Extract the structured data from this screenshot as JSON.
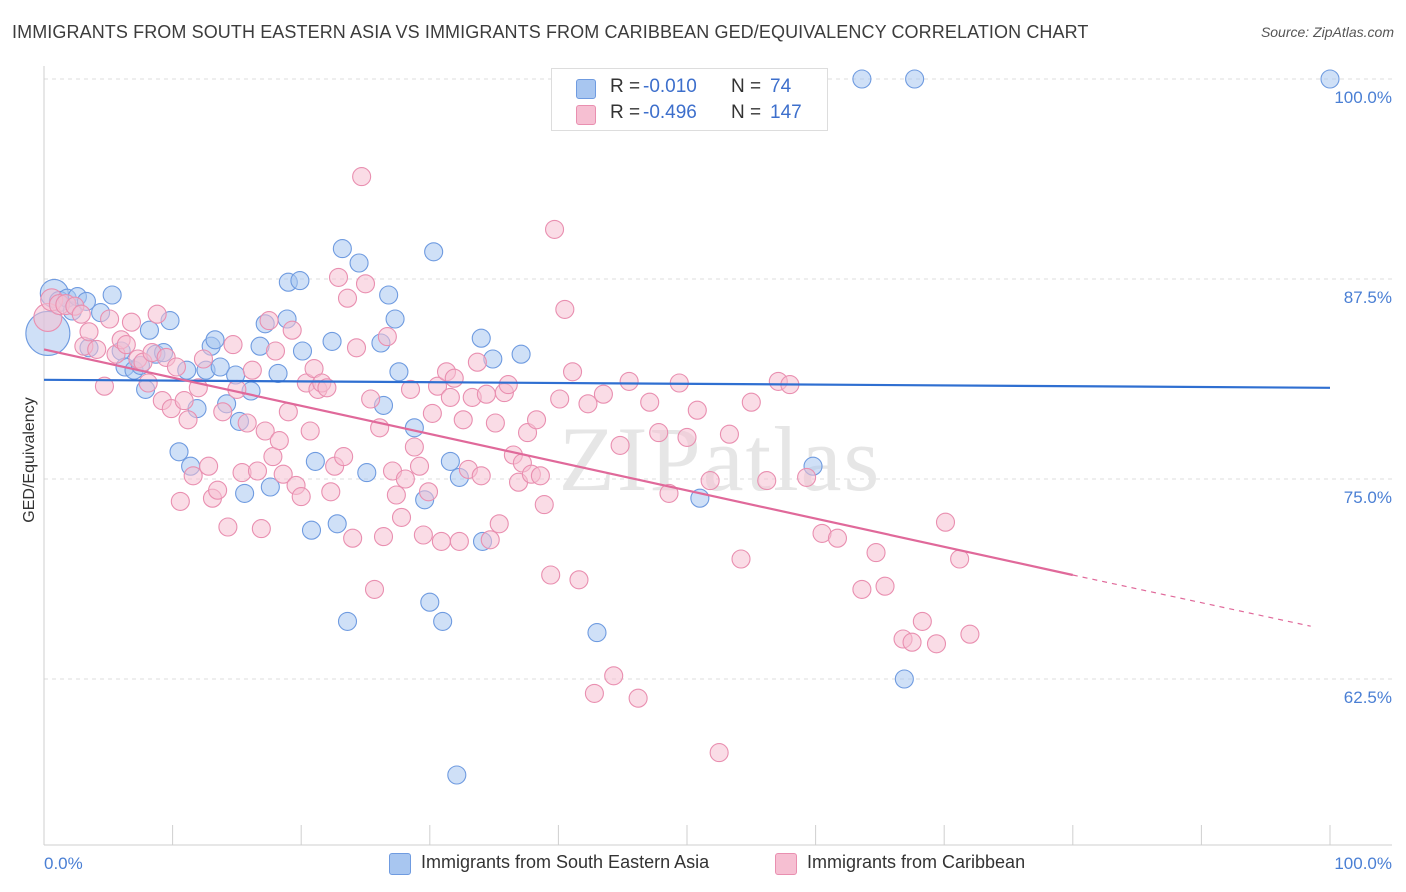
{
  "title": "IMMIGRANTS FROM SOUTH EASTERN ASIA VS IMMIGRANTS FROM CARIBBEAN GED/EQUIVALENCY CORRELATION CHART",
  "source": "Source: ZipAtlas.com",
  "watermark": "ZIPatlas",
  "legend": {
    "rows": [
      {
        "r_label": "R =",
        "r_value": "-0.010",
        "n_label": "N =",
        "n_value": "74",
        "color": "#a8c6f0",
        "border": "#6f9be0"
      },
      {
        "r_label": "R =",
        "r_value": "-0.496",
        "n_label": "N =",
        "n_value": "147",
        "color": "#f6bfd2",
        "border": "#e98fb0"
      }
    ]
  },
  "bottom_legend": [
    {
      "label": "Immigrants from South Eastern Asia",
      "color": "#a8c6f0",
      "border": "#6f9be0"
    },
    {
      "label": "Immigrants from Caribbean",
      "color": "#f6bfd2",
      "border": "#e98fb0"
    }
  ],
  "chart_data": {
    "type": "scatter",
    "title": "IMMIGRANTS FROM SOUTH EASTERN ASIA VS IMMIGRANTS FROM CARIBBEAN GED/EQUIVALENCY CORRELATION CHART",
    "xlabel": "",
    "ylabel": "GED/Equivalency",
    "xlim": [
      0,
      100
    ],
    "ylim": [
      52,
      101.5
    ],
    "x_tick_labels": [
      "0.0%",
      "100.0%"
    ],
    "y_ticks": [
      62.5,
      75.0,
      87.5,
      100.0
    ],
    "y_tick_labels": [
      "62.5%",
      "75.0%",
      "87.5%",
      "100.0%"
    ],
    "grid": "horizontal dashed",
    "legend_position": "top-center",
    "series": [
      {
        "name": "Immigrants from South Eastern Asia",
        "color": "#6f9be0",
        "fill": "#a8c6f0",
        "trend": {
          "x0": 0,
          "y0": 81.2,
          "x1": 100,
          "y1": 80.7
        },
        "points": [
          [
            0.3,
            84.1,
            22
          ],
          [
            0.8,
            86.6,
            14
          ],
          [
            1.2,
            86.1,
            10
          ],
          [
            1.8,
            86.3,
            9
          ],
          [
            2.2,
            85.5,
            9
          ],
          [
            2.6,
            86.4,
            9
          ],
          [
            3.3,
            86.1,
            9
          ],
          [
            4.4,
            85.4,
            9
          ],
          [
            5.3,
            86.5,
            9
          ],
          [
            3.5,
            83.2,
            9
          ],
          [
            6.0,
            83.0,
            9
          ],
          [
            6.3,
            82.0,
            9
          ],
          [
            7.0,
            81.8,
            9
          ],
          [
            7.5,
            82.1,
            9
          ],
          [
            7.9,
            80.6,
            9
          ],
          [
            8.2,
            84.3,
            9
          ],
          [
            8.7,
            82.8,
            9
          ],
          [
            9.3,
            82.9,
            9
          ],
          [
            9.8,
            84.9,
            9
          ],
          [
            10.5,
            76.7,
            9
          ],
          [
            11.1,
            81.8,
            9
          ],
          [
            11.4,
            75.8,
            9
          ],
          [
            11.9,
            79.4,
            9
          ],
          [
            12.6,
            81.8,
            9
          ],
          [
            13.0,
            83.3,
            9
          ],
          [
            13.3,
            83.7,
            9
          ],
          [
            13.7,
            82.0,
            9
          ],
          [
            14.2,
            79.7,
            9
          ],
          [
            14.9,
            81.5,
            9
          ],
          [
            15.2,
            78.6,
            9
          ],
          [
            15.6,
            74.1,
            9
          ],
          [
            16.1,
            80.5,
            9
          ],
          [
            16.8,
            83.3,
            9
          ],
          [
            17.2,
            84.7,
            9
          ],
          [
            17.6,
            74.5,
            9
          ],
          [
            18.2,
            81.6,
            9
          ],
          [
            18.9,
            85.0,
            9
          ],
          [
            19.0,
            87.3,
            9
          ],
          [
            19.9,
            87.4,
            9
          ],
          [
            20.1,
            83.0,
            9
          ],
          [
            20.8,
            71.8,
            9
          ],
          [
            21.1,
            76.1,
            9
          ],
          [
            22.4,
            83.6,
            9
          ],
          [
            22.8,
            72.2,
            9
          ],
          [
            23.2,
            89.4,
            9
          ],
          [
            23.6,
            66.1,
            9
          ],
          [
            24.5,
            88.5,
            9
          ],
          [
            25.1,
            75.4,
            9
          ],
          [
            26.2,
            83.5,
            9
          ],
          [
            26.4,
            79.6,
            9
          ],
          [
            26.8,
            86.5,
            9
          ],
          [
            27.3,
            85.0,
            9
          ],
          [
            27.6,
            81.7,
            9
          ],
          [
            28.8,
            78.2,
            9
          ],
          [
            29.6,
            73.7,
            9
          ],
          [
            30.0,
            67.3,
            9
          ],
          [
            30.3,
            89.2,
            9
          ],
          [
            31.0,
            66.1,
            9
          ],
          [
            31.6,
            76.1,
            9
          ],
          [
            32.1,
            56.5,
            9
          ],
          [
            32.3,
            75.1,
            9
          ],
          [
            34.1,
            71.1,
            9
          ],
          [
            34.0,
            83.8,
            9
          ],
          [
            34.9,
            82.5,
            9
          ],
          [
            37.1,
            82.8,
            9
          ],
          [
            43.0,
            65.4,
            9
          ],
          [
            51.0,
            73.8,
            9
          ],
          [
            59.8,
            75.8,
            9
          ],
          [
            66.9,
            62.5,
            9
          ],
          [
            63.6,
            100.0,
            9
          ],
          [
            67.7,
            100.0,
            9
          ],
          [
            100.0,
            100.0,
            9
          ]
        ]
      },
      {
        "name": "Immigrants from Caribbean",
        "color": "#e98fb0",
        "fill": "#f6bfd2",
        "trend": {
          "x0": 0,
          "y0": 83.1,
          "x1": 80,
          "y1": 69.0,
          "dash_x1": 98.5,
          "dash_y1": 65.8
        },
        "points": [
          [
            0.3,
            85.1,
            14
          ],
          [
            0.6,
            86.2,
            11
          ],
          [
            1.2,
            85.9,
            10
          ],
          [
            1.7,
            85.9,
            10
          ],
          [
            2.4,
            85.8,
            9
          ],
          [
            2.9,
            85.3,
            9
          ],
          [
            3.1,
            83.3,
            9
          ],
          [
            3.5,
            84.2,
            9
          ],
          [
            4.1,
            83.1,
            9
          ],
          [
            4.7,
            80.8,
            9
          ],
          [
            5.1,
            85.0,
            9
          ],
          [
            5.6,
            82.8,
            9
          ],
          [
            6.0,
            83.7,
            9
          ],
          [
            6.4,
            83.4,
            9
          ],
          [
            6.8,
            84.8,
            9
          ],
          [
            7.3,
            82.5,
            9
          ],
          [
            7.7,
            82.3,
            9
          ],
          [
            8.1,
            81.0,
            9
          ],
          [
            8.4,
            82.9,
            9
          ],
          [
            8.8,
            85.3,
            9
          ],
          [
            9.2,
            79.9,
            9
          ],
          [
            9.5,
            82.6,
            9
          ],
          [
            9.9,
            79.4,
            9
          ],
          [
            10.3,
            82.0,
            9
          ],
          [
            10.6,
            73.6,
            9
          ],
          [
            10.9,
            79.9,
            9
          ],
          [
            11.2,
            78.7,
            9
          ],
          [
            11.6,
            75.2,
            9
          ],
          [
            12.0,
            80.7,
            9
          ],
          [
            12.4,
            82.5,
            9
          ],
          [
            12.8,
            75.8,
            9
          ],
          [
            13.1,
            73.8,
            9
          ],
          [
            13.5,
            74.3,
            9
          ],
          [
            13.9,
            79.2,
            9
          ],
          [
            14.3,
            72.0,
            9
          ],
          [
            14.7,
            83.4,
            9
          ],
          [
            15.0,
            80.6,
            9
          ],
          [
            15.4,
            75.4,
            9
          ],
          [
            15.8,
            78.5,
            9
          ],
          [
            16.2,
            81.8,
            9
          ],
          [
            16.6,
            75.5,
            9
          ],
          [
            16.9,
            71.9,
            9
          ],
          [
            17.2,
            78.0,
            9
          ],
          [
            17.5,
            84.9,
            9
          ],
          [
            17.8,
            76.4,
            9
          ],
          [
            18.0,
            83.0,
            9
          ],
          [
            18.3,
            77.4,
            9
          ],
          [
            18.6,
            75.3,
            9
          ],
          [
            19.0,
            79.2,
            9
          ],
          [
            19.3,
            84.3,
            9
          ],
          [
            19.6,
            74.6,
            9
          ],
          [
            20.0,
            73.9,
            9
          ],
          [
            20.4,
            81.0,
            9
          ],
          [
            20.7,
            78.0,
            9
          ],
          [
            21.0,
            81.9,
            9
          ],
          [
            21.3,
            80.6,
            9
          ],
          [
            21.6,
            81.0,
            9
          ],
          [
            22.0,
            80.7,
            9
          ],
          [
            22.3,
            74.2,
            9
          ],
          [
            22.6,
            75.8,
            9
          ],
          [
            22.9,
            87.6,
            9
          ],
          [
            23.3,
            76.4,
            9
          ],
          [
            23.6,
            86.3,
            9
          ],
          [
            24.0,
            71.3,
            9
          ],
          [
            24.3,
            83.2,
            9
          ],
          [
            24.7,
            93.9,
            9
          ],
          [
            25.0,
            87.2,
            9
          ],
          [
            25.4,
            80.0,
            9
          ],
          [
            25.7,
            68.1,
            9
          ],
          [
            26.1,
            78.2,
            9
          ],
          [
            26.4,
            71.4,
            9
          ],
          [
            26.7,
            83.9,
            9
          ],
          [
            27.1,
            75.5,
            9
          ],
          [
            27.4,
            74.0,
            9
          ],
          [
            27.8,
            72.6,
            9
          ],
          [
            28.1,
            75.0,
            9
          ],
          [
            28.5,
            80.6,
            9
          ],
          [
            28.8,
            77.0,
            9
          ],
          [
            29.2,
            75.8,
            9
          ],
          [
            29.5,
            71.5,
            9
          ],
          [
            29.9,
            74.2,
            9
          ],
          [
            30.2,
            79.1,
            9
          ],
          [
            30.6,
            80.8,
            9
          ],
          [
            30.9,
            71.1,
            9
          ],
          [
            31.3,
            81.7,
            9
          ],
          [
            31.6,
            80.1,
            9
          ],
          [
            31.9,
            81.3,
            9
          ],
          [
            32.3,
            71.1,
            9
          ],
          [
            32.6,
            78.7,
            9
          ],
          [
            33.0,
            75.6,
            9
          ],
          [
            33.3,
            80.1,
            9
          ],
          [
            33.7,
            82.3,
            9
          ],
          [
            34.0,
            75.2,
            9
          ],
          [
            34.4,
            80.3,
            9
          ],
          [
            34.7,
            71.2,
            9
          ],
          [
            35.1,
            78.5,
            9
          ],
          [
            35.4,
            72.2,
            9
          ],
          [
            35.8,
            80.4,
            9
          ],
          [
            36.1,
            80.9,
            9
          ],
          [
            36.5,
            76.5,
            9
          ],
          [
            36.9,
            74.8,
            9
          ],
          [
            37.2,
            76.0,
            9
          ],
          [
            37.6,
            77.9,
            9
          ],
          [
            37.9,
            75.3,
            9
          ],
          [
            38.3,
            78.7,
            9
          ],
          [
            38.6,
            75.2,
            9
          ],
          [
            38.9,
            73.4,
            9
          ],
          [
            39.4,
            69.0,
            9
          ],
          [
            39.7,
            90.6,
            9
          ],
          [
            40.1,
            80.0,
            9
          ],
          [
            40.5,
            85.6,
            9
          ],
          [
            41.1,
            81.7,
            9
          ],
          [
            41.6,
            68.7,
            9
          ],
          [
            42.3,
            79.7,
            9
          ],
          [
            42.8,
            61.6,
            9
          ],
          [
            43.5,
            80.3,
            9
          ],
          [
            44.3,
            62.7,
            9
          ],
          [
            44.8,
            77.1,
            9
          ],
          [
            45.5,
            81.1,
            9
          ],
          [
            46.2,
            61.3,
            9
          ],
          [
            47.1,
            79.8,
            9
          ],
          [
            47.8,
            77.9,
            9
          ],
          [
            48.6,
            74.1,
            9
          ],
          [
            49.4,
            81.0,
            9
          ],
          [
            50.0,
            77.6,
            9
          ],
          [
            50.8,
            79.3,
            9
          ],
          [
            51.8,
            74.9,
            9
          ],
          [
            52.5,
            57.9,
            9
          ],
          [
            53.3,
            77.8,
            9
          ],
          [
            54.2,
            70.0,
            9
          ],
          [
            55.0,
            79.8,
            9
          ],
          [
            56.2,
            74.9,
            9
          ],
          [
            57.1,
            81.1,
            9
          ],
          [
            58.0,
            80.9,
            9
          ],
          [
            59.3,
            75.1,
            9
          ],
          [
            60.5,
            71.6,
            9
          ],
          [
            61.7,
            71.3,
            9
          ],
          [
            63.6,
            68.1,
            9
          ],
          [
            64.7,
            70.4,
            9
          ],
          [
            65.4,
            68.3,
            9
          ],
          [
            66.8,
            65.0,
            9
          ],
          [
            67.5,
            64.8,
            9
          ],
          [
            68.3,
            66.1,
            9
          ],
          [
            69.4,
            64.7,
            9
          ],
          [
            70.1,
            72.3,
            9
          ],
          [
            71.2,
            70.0,
            9
          ],
          [
            72.0,
            65.3,
            9
          ]
        ]
      }
    ]
  }
}
